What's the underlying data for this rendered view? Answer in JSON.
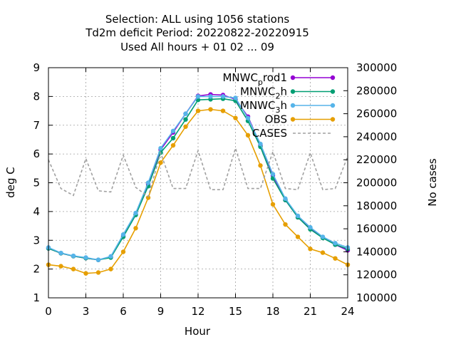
{
  "chart_data": {
    "type": "line",
    "title_lines": [
      "Selection: ALL using  1056 stations",
      "Td2m deficit   Period: 20220822-20220915",
      "Used  All hours  + 01 02 ... 09"
    ],
    "xlabel": "Hour",
    "ylabel": "deg C",
    "y2label": "No cases",
    "xlim": [
      0,
      24
    ],
    "ylim": [
      1,
      9
    ],
    "y2lim": [
      100000,
      300000
    ],
    "xticks": [
      0,
      3,
      6,
      9,
      12,
      15,
      18,
      21,
      24
    ],
    "yticks": [
      1,
      2,
      3,
      4,
      5,
      6,
      7,
      8,
      9
    ],
    "y2ticks": [
      100000,
      120000,
      140000,
      160000,
      180000,
      200000,
      220000,
      240000,
      260000,
      280000,
      300000
    ],
    "grid": true,
    "legend_position": "top-right",
    "x": [
      0,
      1,
      2,
      3,
      4,
      5,
      6,
      7,
      8,
      9,
      10,
      11,
      12,
      13,
      14,
      15,
      16,
      17,
      18,
      19,
      20,
      21,
      22,
      23,
      24
    ],
    "series": [
      {
        "name": "MNWC",
        "name_sub": "p",
        "name_rest": "rod1",
        "color": "#9400d3",
        "marker": "circle",
        "axis": "y",
        "values": [
          2.72,
          2.55,
          2.45,
          2.38,
          2.32,
          2.42,
          3.15,
          3.9,
          4.95,
          6.15,
          6.75,
          7.4,
          8.02,
          8.07,
          8.05,
          7.9,
          7.3,
          6.3,
          5.25,
          4.4,
          3.8,
          3.4,
          3.1,
          2.85,
          2.65
        ]
      },
      {
        "name": "MNWC",
        "name_sub": "2",
        "name_rest": "h",
        "color": "#009e73",
        "marker": "circle",
        "axis": "y",
        "values": [
          2.72,
          2.55,
          2.45,
          2.38,
          2.32,
          2.4,
          3.12,
          3.88,
          4.88,
          6.05,
          6.55,
          7.2,
          7.88,
          7.9,
          7.92,
          7.85,
          7.15,
          6.25,
          5.15,
          4.4,
          3.8,
          3.38,
          3.08,
          2.85,
          2.7
        ]
      },
      {
        "name": "MNWC",
        "name_sub": "3",
        "name_rest": "h",
        "color": "#56b4e9",
        "marker": "circle",
        "axis": "y",
        "values": [
          2.75,
          2.56,
          2.46,
          2.4,
          2.32,
          2.44,
          3.2,
          3.95,
          5.0,
          6.2,
          6.8,
          7.4,
          8.0,
          8.0,
          8.0,
          7.95,
          7.25,
          6.35,
          5.3,
          4.45,
          3.85,
          3.45,
          3.12,
          2.9,
          2.75
        ]
      },
      {
        "name": "OBS",
        "color": "#e69f00",
        "marker": "circle",
        "axis": "y",
        "values": [
          2.15,
          2.1,
          2.0,
          1.85,
          1.88,
          2.0,
          2.6,
          3.42,
          4.48,
          5.7,
          6.3,
          6.95,
          7.5,
          7.55,
          7.5,
          7.25,
          6.65,
          5.6,
          4.25,
          3.55,
          3.12,
          2.7,
          2.57,
          2.37,
          2.15
        ]
      },
      {
        "name": "CASES",
        "color": "#a0a0a0",
        "marker": "none",
        "dash": "dotted",
        "axis": "y2",
        "values": [
          220000,
          195000,
          189000,
          221000,
          193000,
          192000,
          224000,
          196000,
          188000,
          226000,
          195000,
          195000,
          228000,
          194000,
          194000,
          230000,
          195000,
          195000,
          227000,
          195000,
          194000,
          226000,
          194000,
          195000,
          223000
        ]
      }
    ]
  }
}
